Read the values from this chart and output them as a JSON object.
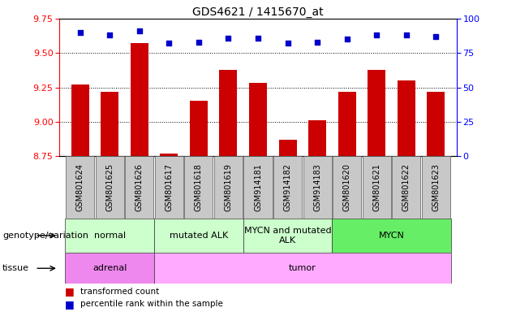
{
  "title": "GDS4621 / 1415670_at",
  "samples": [
    "GSM801624",
    "GSM801625",
    "GSM801626",
    "GSM801617",
    "GSM801618",
    "GSM801619",
    "GSM914181",
    "GSM914182",
    "GSM914183",
    "GSM801620",
    "GSM801621",
    "GSM801622",
    "GSM801623"
  ],
  "bar_values": [
    9.27,
    9.22,
    9.57,
    8.77,
    9.15,
    9.38,
    9.28,
    8.87,
    9.01,
    9.22,
    9.38,
    9.3,
    9.22
  ],
  "dot_values": [
    90,
    88,
    91,
    82,
    83,
    86,
    86,
    82,
    83,
    85,
    88,
    88,
    87
  ],
  "ylim_left": [
    8.75,
    9.75
  ],
  "ylim_right": [
    0,
    100
  ],
  "yticks_left": [
    8.75,
    9.0,
    9.25,
    9.5,
    9.75
  ],
  "yticks_right": [
    0,
    25,
    50,
    75,
    100
  ],
  "bar_color": "#cc0000",
  "dot_color": "#0000cc",
  "bar_bottom": 8.75,
  "genotype_groups": [
    {
      "label": "normal",
      "start": 0,
      "end": 3,
      "color": "#ccffcc"
    },
    {
      "label": "mutated ALK",
      "start": 3,
      "end": 6,
      "color": "#ccffcc"
    },
    {
      "label": "MYCN and mutated\nALK",
      "start": 6,
      "end": 9,
      "color": "#ccffcc"
    },
    {
      "label": "MYCN",
      "start": 9,
      "end": 13,
      "color": "#66ee66"
    }
  ],
  "tissue_groups": [
    {
      "label": "adrenal",
      "start": 0,
      "end": 3,
      "color": "#ee88ee"
    },
    {
      "label": "tumor",
      "start": 3,
      "end": 13,
      "color": "#ffaaff"
    }
  ],
  "legend_items": [
    {
      "label": "transformed count",
      "color": "#cc0000"
    },
    {
      "label": "percentile rank within the sample",
      "color": "#0000cc"
    }
  ],
  "title_fontsize": 10,
  "tick_fontsize": 8,
  "sample_fontsize": 7,
  "annotation_fontsize": 8
}
